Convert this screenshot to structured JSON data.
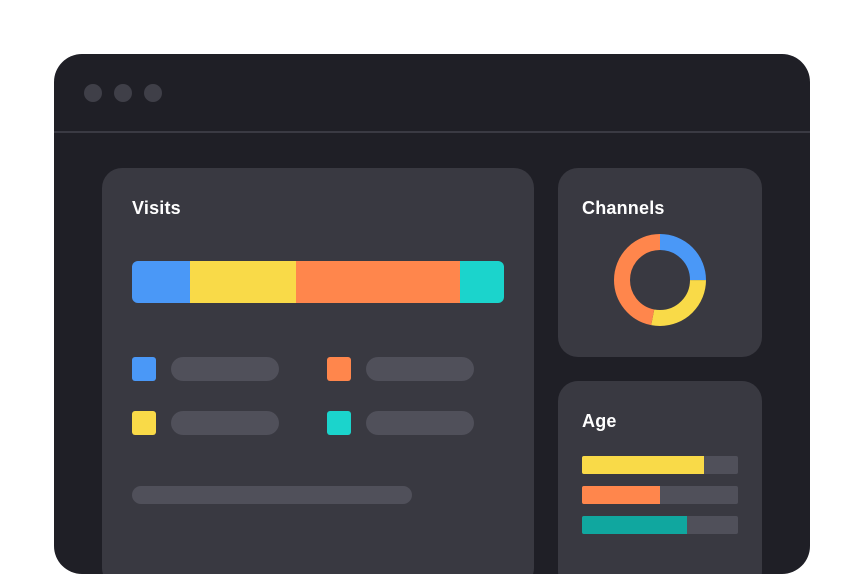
{
  "visits": {
    "title": "Visits",
    "segments": [
      {
        "share": 0.156,
        "color": "#4a98f7"
      },
      {
        "share": 0.285,
        "color": "#f9da48"
      },
      {
        "share": 0.44,
        "color": "#ff864c"
      },
      {
        "share": 0.119,
        "color": "#1bd4cc"
      }
    ],
    "legend": [
      {
        "color": "#4a98f7"
      },
      {
        "color": "#ff864c"
      },
      {
        "color": "#f9da48"
      },
      {
        "color": "#1bd4cc"
      }
    ]
  },
  "channels": {
    "title": "Channels",
    "slices": [
      {
        "share": 0.25,
        "color": "#4a98f7"
      },
      {
        "share": 0.28,
        "color": "#f9da48"
      },
      {
        "share": 0.47,
        "color": "#ff864c"
      }
    ]
  },
  "age": {
    "title": "Age",
    "bars": [
      {
        "fill": 0.78,
        "color": "#f9da48"
      },
      {
        "fill": 0.5,
        "color": "#ff864c"
      },
      {
        "fill": 0.67,
        "color": "#10a79f"
      }
    ]
  }
}
